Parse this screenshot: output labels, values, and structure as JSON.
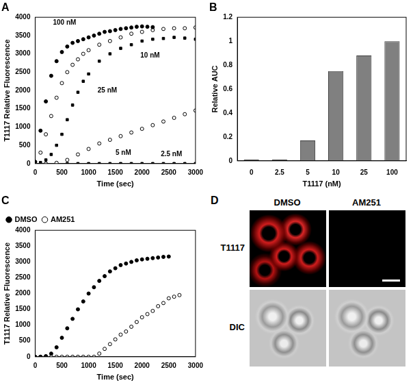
{
  "chart_data": [
    {
      "type": "scatter",
      "title": "A",
      "x_label": "Time (sec)",
      "y_label": "T1117 Relative Fluorescence",
      "xlim": [
        0,
        3000
      ],
      "xticks": [
        0,
        500,
        1000,
        1500,
        2000,
        2500,
        3000
      ],
      "ylim": [
        0,
        4000
      ],
      "yticks": [
        0,
        500,
        1000,
        1500,
        2000,
        2500,
        3000,
        3500,
        4000
      ],
      "grid": false,
      "series": [
        {
          "name": "100 nM",
          "color": "#000000",
          "marker": "circle",
          "x": [
            0,
            100,
            200,
            300,
            400,
            500,
            600,
            700,
            800,
            900,
            1000,
            1100,
            1200,
            1300,
            1400,
            1500,
            1600,
            1700,
            1800,
            1900,
            2000,
            2100,
            2200
          ],
          "values": [
            50,
            900,
            1700,
            2400,
            2800,
            3050,
            3200,
            3300,
            3350,
            3400,
            3450,
            3500,
            3550,
            3600,
            3620,
            3650,
            3680,
            3700,
            3720,
            3740,
            3750,
            3740,
            3730
          ],
          "annotation": {
            "x": 550,
            "y": 3850
          }
        },
        {
          "name": "25 nM",
          "color": "#000000",
          "marker": "circle_open",
          "x": [
            0,
            100,
            200,
            300,
            400,
            500,
            600,
            700,
            800,
            900,
            1000,
            1200,
            1400,
            1600,
            1800,
            2000,
            2200,
            2400,
            2600,
            2800,
            3000
          ],
          "values": [
            0,
            300,
            800,
            1300,
            1800,
            2200,
            2500,
            2700,
            2850,
            3000,
            3100,
            3250,
            3350,
            3450,
            3550,
            3600,
            3650,
            3680,
            3700,
            3700,
            3720
          ],
          "annotation": {
            "x": 1350,
            "y": 2000
          }
        },
        {
          "name": "10 nM",
          "color": "#000000",
          "marker": "square",
          "x": [
            0,
            100,
            200,
            300,
            400,
            500,
            600,
            700,
            800,
            900,
            1000,
            1200,
            1400,
            1600,
            1800,
            2000,
            2200,
            2400,
            2600,
            2800,
            3000
          ],
          "values": [
            0,
            30,
            100,
            250,
            500,
            800,
            1200,
            1600,
            1950,
            2250,
            2450,
            2800,
            3000,
            3150,
            3250,
            3350,
            3400,
            3420,
            3450,
            3430,
            3400
          ],
          "annotation": {
            "x": 2150,
            "y": 2950
          }
        },
        {
          "name": "5 nM",
          "color": "#000000",
          "marker": "circle_open",
          "x": [
            0,
            200,
            400,
            600,
            800,
            1000,
            1200,
            1400,
            1600,
            1800,
            2000,
            2200,
            2400,
            2600,
            2800,
            3000
          ],
          "values": [
            0,
            0,
            20,
            100,
            250,
            400,
            550,
            650,
            750,
            850,
            950,
            1050,
            1150,
            1250,
            1350,
            1450
          ],
          "annotation": {
            "x": 1650,
            "y": 300
          }
        },
        {
          "name": "2.5 nM",
          "color": "#000000",
          "marker": "square",
          "x": [
            0,
            200,
            400,
            600,
            800,
            1000,
            1200,
            1400,
            1600,
            1800,
            2000,
            2200,
            2400,
            2600,
            2800,
            3000
          ],
          "values": [
            0,
            0,
            0,
            0,
            0,
            0,
            0,
            0,
            0,
            0,
            0,
            0,
            0,
            0,
            0,
            0
          ],
          "annotation": {
            "x": 2550,
            "y": 250
          }
        }
      ]
    },
    {
      "type": "bar",
      "title": "B",
      "x_label": "T1117 (nM)",
      "y_label": "Relative AUC",
      "categories": [
        "0",
        "2.5",
        "5",
        "10",
        "25",
        "100"
      ],
      "values": [
        0.01,
        0.01,
        0.17,
        0.75,
        0.88,
        1.0
      ],
      "color": "#808080",
      "ylim": [
        0,
        1.2
      ],
      "yticks": [
        0,
        0.2,
        0.4,
        0.6,
        0.8,
        1,
        1.2
      ],
      "grid": false
    },
    {
      "type": "scatter",
      "title": "C",
      "x_label": "Time (sec)",
      "y_label": "T1117 Relative Fluorescence",
      "xlim": [
        0,
        3000
      ],
      "xticks": [
        0,
        500,
        1000,
        1500,
        2000,
        2500,
        3000
      ],
      "ylim": [
        0,
        4000
      ],
      "yticks": [
        0,
        500,
        1000,
        1500,
        2000,
        2500,
        3000,
        3500,
        4000
      ],
      "grid": false,
      "legend": "upper left",
      "series": [
        {
          "name": "DMSO",
          "color": "#000000",
          "marker": "circle",
          "x": [
            0,
            100,
            200,
            300,
            400,
            500,
            600,
            700,
            800,
            900,
            1000,
            1100,
            1200,
            1300,
            1400,
            1500,
            1600,
            1700,
            1800,
            1900,
            2000,
            2100,
            2200,
            2300,
            2400,
            2500
          ],
          "values": [
            0,
            0,
            20,
            100,
            300,
            600,
            900,
            1200,
            1500,
            1750,
            2000,
            2200,
            2400,
            2550,
            2700,
            2800,
            2900,
            2950,
            3000,
            3050,
            3080,
            3100,
            3120,
            3140,
            3160,
            3170
          ]
        },
        {
          "name": "AM251",
          "color": "#000000",
          "marker": "circle_open",
          "x": [
            0,
            100,
            200,
            300,
            400,
            500,
            600,
            700,
            800,
            900,
            1000,
            1100,
            1200,
            1300,
            1400,
            1500,
            1600,
            1700,
            1800,
            1900,
            2000,
            2100,
            2200,
            2300,
            2400,
            2500,
            2600,
            2700
          ],
          "values": [
            0,
            0,
            0,
            0,
            0,
            0,
            0,
            0,
            0,
            0,
            0,
            0,
            100,
            250,
            400,
            550,
            700,
            800,
            950,
            1100,
            1250,
            1350,
            1450,
            1600,
            1700,
            1850,
            1900,
            1950
          ]
        }
      ]
    },
    {
      "type": "image",
      "title": "D",
      "columns": [
        "DMSO",
        "AM251"
      ],
      "rows": [
        "T1117",
        "DIC"
      ]
    }
  ]
}
